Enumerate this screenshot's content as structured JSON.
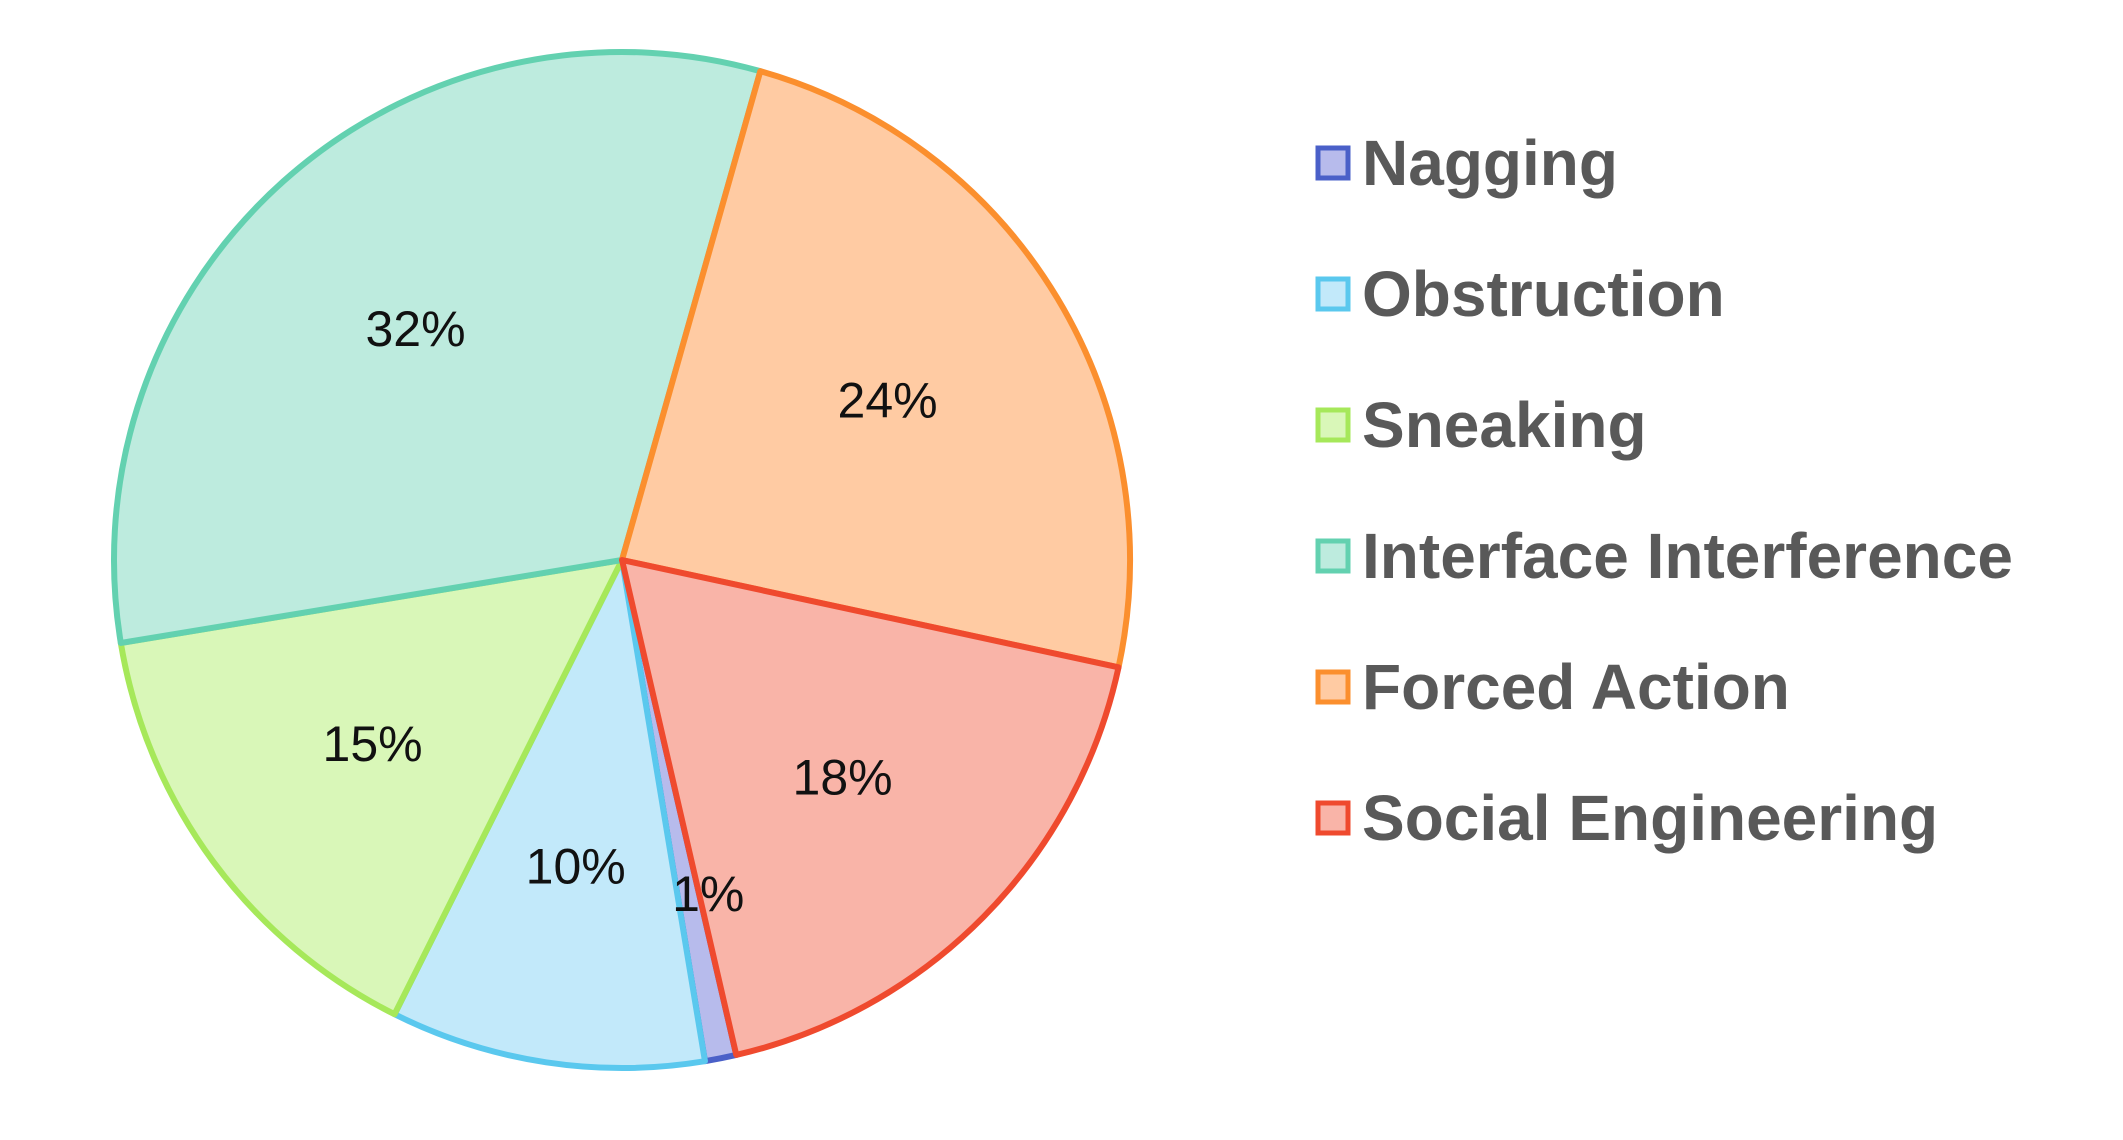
{
  "chart_data": {
    "type": "pie",
    "title": "",
    "legend_position": "right",
    "slices": [
      {
        "name": "Nagging",
        "value": 1,
        "label": "1%",
        "fill": "#b7bbec",
        "stroke": "#4a60c8"
      },
      {
        "name": "Obstruction",
        "value": 10,
        "label": "10%",
        "fill": "#c2e9fa",
        "stroke": "#5ac8ee"
      },
      {
        "name": "Sneaking",
        "value": 15,
        "label": "15%",
        "fill": "#d9f7b8",
        "stroke": "#a6e85a"
      },
      {
        "name": "Interface Interference",
        "value": 32,
        "label": "32%",
        "fill": "#bdebde",
        "stroke": "#63d1b0"
      },
      {
        "name": "Forced Action",
        "value": 24,
        "label": "24%",
        "fill": "#ffcba3",
        "stroke": "#fb8f2e"
      },
      {
        "name": "Social Engineering",
        "value": 18,
        "label": "18%",
        "fill": "#f9b4a8",
        "stroke": "#ef4a2e"
      }
    ]
  }
}
